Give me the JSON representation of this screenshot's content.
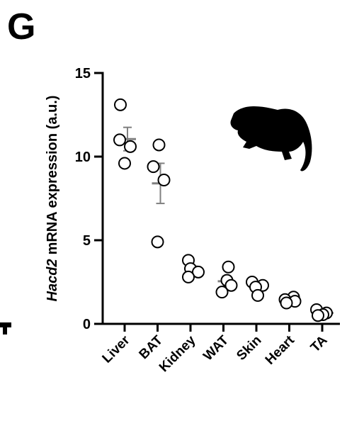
{
  "panel_label": "G",
  "chart_data": {
    "type": "dot",
    "y_label": [
      "Hacd2",
      "mRNA expression (a.u.)"
    ],
    "categories": [
      "Liver",
      "BAT",
      "Kidney",
      "WAT",
      "Skin",
      "Heart",
      "TA"
    ],
    "values": [
      [
        13.1,
        11.0,
        10.6,
        9.6
      ],
      [
        10.7,
        9.4,
        8.6,
        4.9
      ],
      [
        3.8,
        3.3,
        3.1,
        2.8
      ],
      [
        3.4,
        2.6,
        2.3,
        1.9
      ],
      [
        2.5,
        2.3,
        2.2,
        1.7
      ],
      [
        1.6,
        1.45,
        1.35,
        1.25
      ],
      [
        0.85,
        0.65,
        0.55,
        0.5
      ]
    ],
    "means": [
      11.05,
      8.4,
      3.25,
      2.55,
      2.2,
      1.4,
      0.65
    ],
    "sem": [
      0.7,
      1.2,
      0.2,
      0.3,
      0.15,
      0.1,
      0.1
    ],
    "ylim": [
      0,
      15
    ],
    "yticks": [
      0,
      5,
      10,
      15
    ],
    "marker_color": "#ffffff",
    "mean_color": "#808080"
  }
}
